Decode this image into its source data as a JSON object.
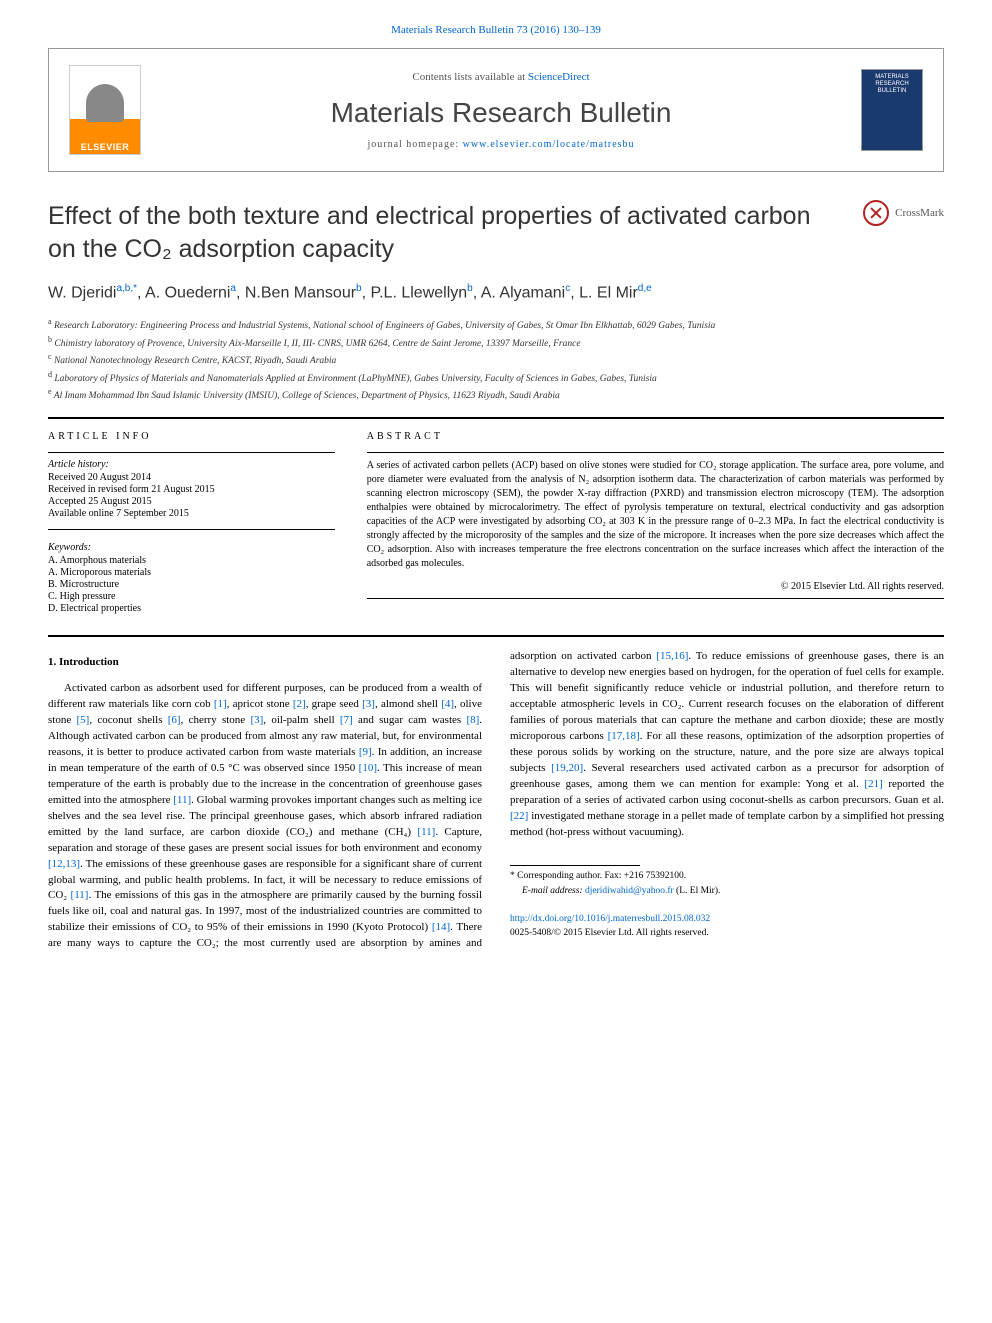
{
  "journal_citation": "Materials Research Bulletin 73 (2016) 130–139",
  "header": {
    "contents_prefix": "Contents lists available at ",
    "contents_link": "ScienceDirect",
    "journal_name": "Materials Research Bulletin",
    "homepage_prefix": "journal homepage: ",
    "homepage_url": "www.elsevier.com/locate/matresbu",
    "elsevier_label": "ELSEVIER",
    "cover_text": "MATERIALS RESEARCH BULLETIN"
  },
  "title": "Effect of the both texture and electrical properties of activated carbon on the CO₂ adsorption capacity",
  "crossmark": "CrossMark",
  "authors_html": "W. Djeridi<sup>a,b,*</sup>, A. Ouederni<sup>a</sup>, N.Ben Mansour<sup>b</sup>, P.L. Llewellyn<sup>b</sup>, A. Alyamani<sup>c</sup>, L. El Mir<sup>d,e</sup>",
  "affiliations": [
    {
      "sup": "a",
      "text": "Research Laboratory: Engineering Process and Industrial Systems, National school of Engineers of Gabes, University of Gabes, St Omar Ibn Elkhattab, 6029 Gabes, Tunisia"
    },
    {
      "sup": "b",
      "text": "Chimistry laboratory of Provence, University Aix-Marseille I, II, III- CNRS, UMR 6264, Centre de Saint Jerome, 13397 Marseille, France"
    },
    {
      "sup": "c",
      "text": "National Nanotechnology Research Centre, KACST, Riyadh, Saudi Arabia"
    },
    {
      "sup": "d",
      "text": "Laboratory of Physics of Materials and Nanomaterials Applied at Environment (LaPhyMNE), Gabes University, Faculty of Sciences in Gabes, Gabes, Tunisia"
    },
    {
      "sup": "e",
      "text": "Al Imam Mohammad Ibn Saud Islamic University (IMSIU), College of Sciences, Department of Physics, 11623 Riyadh, Saudi Arabia"
    }
  ],
  "article_info": {
    "heading": "ARTICLE INFO",
    "history_label": "Article history:",
    "history": [
      "Received 20 August 2014",
      "Received in revised form 21 August 2015",
      "Accepted 25 August 2015",
      "Available online 7 September 2015"
    ],
    "keywords_label": "Keywords:",
    "keywords": [
      "A. Amorphous materials",
      "A. Microporous materials",
      "B. Microstructure",
      "C. High pressure",
      "D. Electrical properties"
    ]
  },
  "abstract": {
    "heading": "ABSTRACT",
    "text": "A series of activated carbon pellets (ACP) based on olive stones were studied for CO₂ storage application. The surface area, pore volume, and pore diameter were evaluated from the analysis of N₂ adsorption isotherm data. The characterization of carbon materials was performed by scanning electron microscopy (SEM), the powder X-ray diffraction (PXRD) and transmission electron microscopy (TEM). The adsorption enthalpies were obtained by microcalorimetry. The effect of pyrolysis temperature on textural, electrical conductivity and gas adsorption capacities of the ACP were investigated by adsorbing CO₂ at 303 K in the pressure range of 0–2.3 MPa. In fact the electrical conductivity is strongly affected by the microporosity of the samples and the size of the micropore. It increases when the pore size decreases which affect the CO₂ adsorption. Also with increases temperature the free electrons concentration on the surface increases which affect the interaction of the adsorbed gas molecules.",
    "copyright": "© 2015 Elsevier Ltd. All rights reserved."
  },
  "section1": {
    "heading": "1. Introduction",
    "para": "Activated carbon as adsorbent used for different purposes, can be produced from a wealth of different raw materials like corn cob [1], apricot stone [2], grape seed [3], almond shell [4], olive stone [5], coconut shells [6], cherry stone [3], oil-palm shell [7] and sugar cam wastes [8]. Although activated carbon can be produced from almost any raw material, but, for environmental reasons, it is better to produce activated carbon from waste materials [9]. In addition, an increase in mean temperature of the earth of 0.5 °C was observed since 1950 [10]. This increase of mean temperature of the earth is probably due to the increase in the concentration of greenhouse gases emitted into the atmosphere [11]. Global warming provokes important changes such as melting ice shelves and the sea level rise. The principal greenhouse gases, which absorb infrared radiation emitted by the land surface, are carbon dioxide (CO₂) and methane (CH₄) [11]. Capture, separation and storage of these gases are present social issues for both environment and economy [12,13]. The emissions of these greenhouse gases are responsible for a significant share of current global warming, and public health problems. In fact, it will be necessary to reduce emissions of CO₂ [11]. The emissions of this gas in the atmosphere are primarily caused by the burning fossil fuels like oil, coal and natural gas. In 1997, most of the industrialized countries are committed to stabilize their emissions of CO₂ to 95% of their emissions in 1990 (Kyoto Protocol) [14]. There are many ways to capture the CO₂; the most currently used are absorption by amines and adsorption on activated carbon [15,16]. To reduce emissions of greenhouse gases, there is an alternative to develop new energies based on hydrogen, for the operation of fuel cells for example. This will benefit significantly reduce vehicle or industrial pollution, and therefore return to acceptable atmospheric levels in CO₂. Current research focuses on the elaboration of different families of porous materials that can capture the methane and carbon dioxide; these are mostly microporous carbons [17,18]. For all these reasons, optimization of the adsorption properties of these porous solids by working on the structure, nature, and the pore size are always topical subjects [19,20]. Several researchers used activated carbon as a precursor for adsorption of greenhouse gases, among them we can mention for example: Yong et al. [21] reported the preparation of a series of activated carbon using coconut-shells as carbon precursors. Guan et al. [22] investigated methane storage in a pellet made of template carbon by a simplified hot pressing method (hot-press without vacuuming)."
  },
  "footer": {
    "corresponding": "* Corresponding author. Fax: +216 75392100.",
    "email_label": "E-mail address: ",
    "email": "djeridiwahid@yahoo.fr",
    "email_suffix": " (L. El Mir).",
    "doi_url": "http://dx.doi.org/10.1016/j.materresbull.2015.08.032",
    "issn_line": "0025-5408/© 2015 Elsevier Ltd. All rights reserved."
  },
  "colors": {
    "link": "#0066cc",
    "elsevier_orange": "#ff8c00",
    "cover_blue": "#1a3a6e",
    "crossmark_red": "#b22222"
  }
}
